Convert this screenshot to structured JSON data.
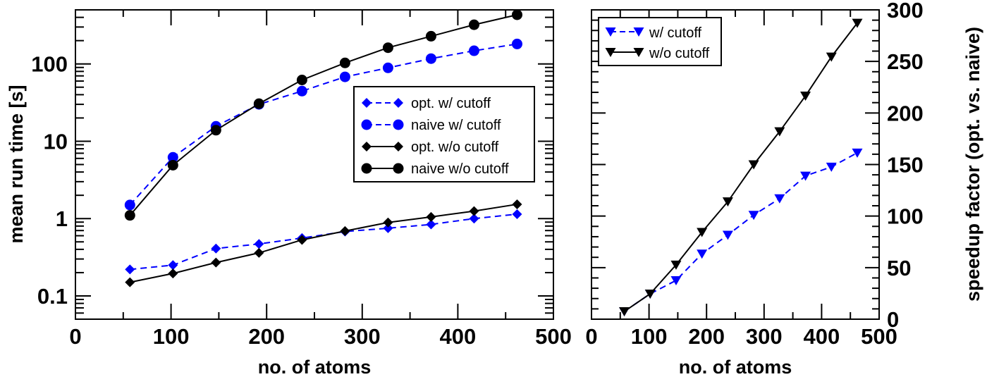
{
  "chart_data": [
    {
      "type": "line",
      "xlabel": "no. of atoms",
      "ylabel": "mean run time [s]",
      "xlim": [
        0,
        500
      ],
      "ylim": [
        0.05,
        500
      ],
      "yscale": "log",
      "x_ticks": [
        "0",
        "100",
        "200",
        "300",
        "400",
        "500"
      ],
      "y_ticks": [
        "0.1",
        "1",
        "10",
        "100"
      ],
      "grid": false,
      "legend_position": "center-right",
      "x": [
        57,
        102,
        147,
        192,
        237,
        282,
        327,
        372,
        417,
        462
      ],
      "series": [
        {
          "name": "opt. w/ cutoff",
          "color": "#0000ff",
          "dash": true,
          "marker": "diamond",
          "values": [
            0.22,
            0.25,
            0.41,
            0.47,
            0.56,
            0.68,
            0.75,
            0.84,
            1.0,
            1.14
          ]
        },
        {
          "name": "naive w/ cutoff",
          "color": "#0000ff",
          "dash": true,
          "marker": "circle",
          "values": [
            1.5,
            6.2,
            15.6,
            30,
            44.5,
            68,
            89,
            117,
            148,
            181
          ]
        },
        {
          "name": "opt. w/o cutoff",
          "color": "#000000",
          "dash": false,
          "marker": "diamond",
          "values": [
            0.15,
            0.195,
            0.27,
            0.36,
            0.53,
            0.69,
            0.89,
            1.05,
            1.25,
            1.53
          ]
        },
        {
          "name": "naive w/o cutoff",
          "color": "#000000",
          "dash": false,
          "marker": "circle",
          "values": [
            1.1,
            4.9,
            13.9,
            30.6,
            62,
            103,
            162,
            228,
            321,
            432
          ]
        }
      ]
    },
    {
      "type": "line",
      "xlabel": "no. of atoms",
      "ylabel": "speedup factor (opt. vs. naive)",
      "xlim": [
        0,
        500
      ],
      "ylim": [
        0,
        300
      ],
      "x_ticks": [
        "0",
        "100",
        "200",
        "300",
        "400",
        "500"
      ],
      "y_ticks": [
        "0",
        "50",
        "100",
        "150",
        "200",
        "250",
        "300"
      ],
      "y_axis_side": "right",
      "grid": false,
      "legend_position": "top-left",
      "x": [
        57,
        102,
        147,
        192,
        237,
        282,
        327,
        372,
        417,
        462
      ],
      "series": [
        {
          "name": "w/ cutoff",
          "color": "#0000ff",
          "dash": true,
          "marker": "triangle-down",
          "values": [
            7.5,
            24.6,
            37.6,
            63.4,
            81.7,
            101,
            117,
            139,
            147.7,
            161.4
          ]
        },
        {
          "name": "w/o cutoff",
          "color": "#000000",
          "dash": false,
          "marker": "triangle-down",
          "values": [
            7.5,
            24.6,
            52.7,
            84.4,
            114,
            150,
            182,
            216.6,
            254.5,
            287.3
          ]
        }
      ]
    }
  ]
}
